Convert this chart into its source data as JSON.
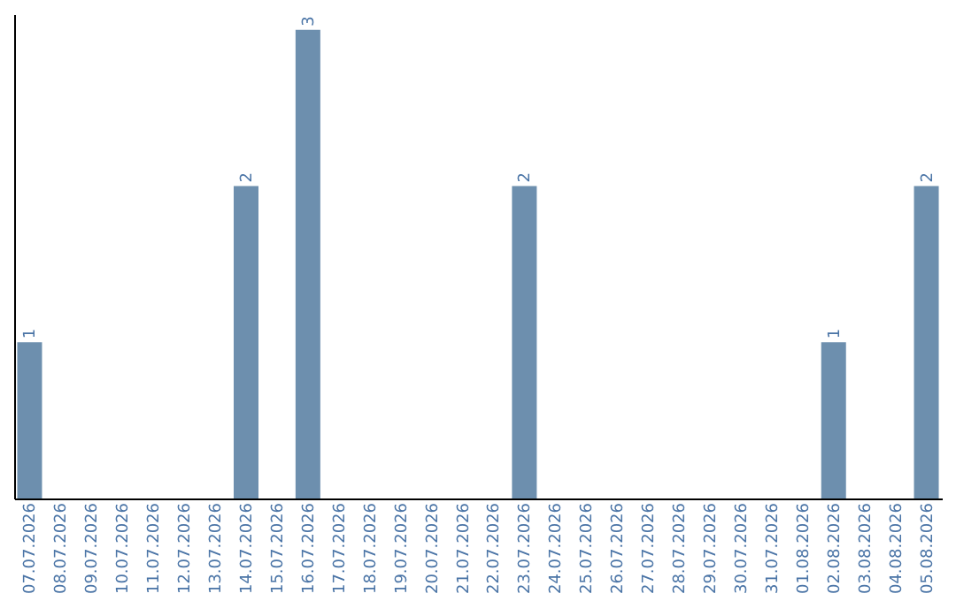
{
  "chart_data": {
    "type": "bar",
    "categories": [
      "07.07.2026",
      "08.07.2026",
      "09.07.2026",
      "10.07.2026",
      "11.07.2026",
      "12.07.2026",
      "13.07.2026",
      "14.07.2026",
      "15.07.2026",
      "16.07.2026",
      "17.07.2026",
      "18.07.2026",
      "19.07.2026",
      "20.07.2026",
      "21.07.2026",
      "22.07.2026",
      "23.07.2026",
      "24.07.2026",
      "25.07.2026",
      "26.07.2026",
      "27.07.2026",
      "28.07.2026",
      "29.07.2026",
      "30.07.2026",
      "31.07.2026",
      "01.08.2026",
      "02.08.2026",
      "03.08.2026",
      "04.08.2026",
      "05.08.2026"
    ],
    "values": [
      1,
      0,
      0,
      0,
      0,
      0,
      0,
      2,
      0,
      3,
      0,
      0,
      0,
      0,
      0,
      0,
      2,
      0,
      0,
      0,
      0,
      0,
      0,
      0,
      0,
      0,
      1,
      0,
      0,
      2
    ],
    "color": "#6d8fae",
    "ylim": [
      0,
      3.1
    ],
    "value_labels": [
      "1",
      null,
      null,
      null,
      null,
      null,
      null,
      "2",
      null,
      "3",
      null,
      null,
      null,
      null,
      null,
      null,
      "2",
      null,
      null,
      null,
      null,
      null,
      null,
      null,
      null,
      null,
      "1",
      null,
      null,
      "2"
    ],
    "tick_labels": "x",
    "grid": false
  }
}
